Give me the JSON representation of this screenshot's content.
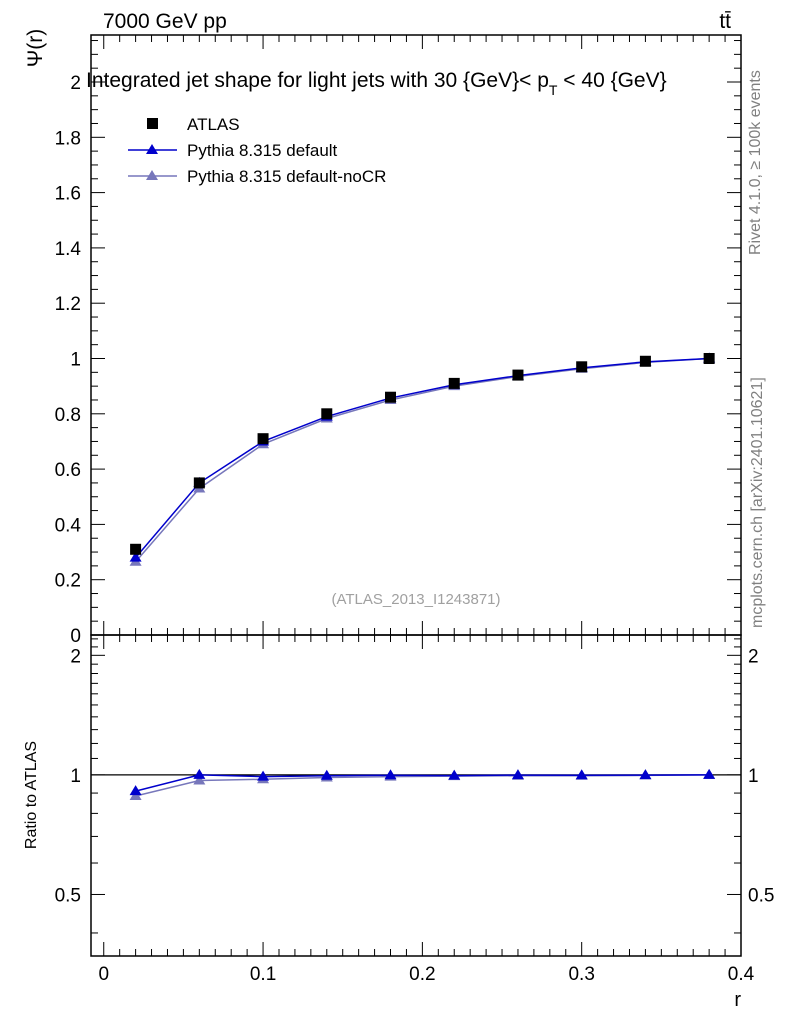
{
  "header": {
    "energy_label": "7000 GeV pp",
    "process_label": "tt̄"
  },
  "side_labels": {
    "rivet": "Rivet 4.1.0, ≥ 100k events",
    "mcplots": "mcplots.cern.ch [arXiv:2401.10621]"
  },
  "analysis_tag": "(ATLAS_2013_I1243871)",
  "colors": {
    "data": "#000000",
    "default": "#0000cc",
    "noCR": "#7777bb"
  },
  "chart_data": {
    "type": "line",
    "title": "Integrated jet shape for light jets with 30 {GeV}< p_T < 40 {GeV}",
    "title_parts": {
      "before_sub": "Integrated jet shape for light jets with 30 {GeV}< p",
      "sub": "T",
      "after_sub": " < 40 {GeV}"
    },
    "xlabel": "r",
    "ylabel": "Ψ(r)",
    "ratio_ylabel": "Ratio to ATLAS",
    "xlim": [
      -0.008,
      0.4
    ],
    "ylim": [
      0,
      2.17
    ],
    "ratio_ylim": [
      0.35,
      2.25
    ],
    "x_tick_labels": [
      "0",
      "0.1",
      "0.2",
      "0.3",
      "0.4"
    ],
    "y_tick_labels": [
      "0",
      "0.2",
      "0.4",
      "0.6",
      "0.8",
      "1",
      "1.2",
      "1.4",
      "1.6",
      "1.8",
      "2"
    ],
    "ratio_tick_labels": [
      "0.5",
      "1",
      "2"
    ],
    "x": [
      0.02,
      0.06,
      0.1,
      0.14,
      0.18,
      0.22,
      0.26,
      0.3,
      0.34,
      0.38
    ],
    "series": [
      {
        "name": "ATLAS",
        "marker": "square",
        "values": [
          0.31,
          0.55,
          0.71,
          0.8,
          0.86,
          0.91,
          0.94,
          0.97,
          0.99,
          1.0
        ]
      },
      {
        "name": "Pythia 8.315 default",
        "marker": "triangle",
        "values": [
          0.28,
          0.55,
          0.7,
          0.79,
          0.857,
          0.905,
          0.938,
          0.966,
          0.988,
          1.0
        ]
      },
      {
        "name": "Pythia 8.315 default-noCR",
        "marker": "triangle",
        "values": [
          0.265,
          0.53,
          0.69,
          0.783,
          0.85,
          0.9,
          0.935,
          0.963,
          0.986,
          1.0
        ]
      }
    ],
    "ratio_series": [
      {
        "name": "Pythia 8.315 default",
        "values": [
          0.91,
          1.0,
          0.99,
          0.995,
          0.998,
          0.996,
          0.999,
          0.998,
          0.999,
          1.0
        ]
      },
      {
        "name": "Pythia 8.315 default-noCR",
        "values": [
          0.885,
          0.968,
          0.975,
          0.985,
          0.99,
          0.993,
          0.995,
          0.995,
          0.997,
          1.0
        ]
      }
    ],
    "legend_position": "top-left"
  }
}
